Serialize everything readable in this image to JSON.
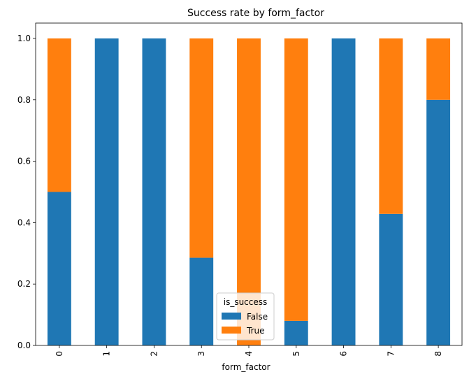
{
  "chart_data": {
    "type": "bar",
    "stacked": true,
    "title": "Success rate by form_factor",
    "xlabel": "form_factor",
    "ylabel": "",
    "categories": [
      "0",
      "1",
      "2",
      "3",
      "4",
      "5",
      "6",
      "7",
      "8"
    ],
    "series": [
      {
        "name": "False",
        "color": "#1f77b4",
        "values": [
          0.5,
          1.0,
          1.0,
          0.2857,
          0.0,
          0.08,
          1.0,
          0.4286,
          0.8
        ]
      },
      {
        "name": "True",
        "color": "#ff7f0e",
        "values": [
          0.5,
          0.0,
          0.0,
          0.7143,
          1.0,
          0.92,
          0.0,
          0.5714,
          0.2
        ]
      }
    ],
    "ylim": [
      0,
      1.05
    ],
    "yticks": [
      "0.0",
      "0.2",
      "0.4",
      "0.6",
      "0.8",
      "1.0"
    ],
    "grid": false,
    "legend": {
      "title": "is_success",
      "placement": "lower-center"
    }
  }
}
